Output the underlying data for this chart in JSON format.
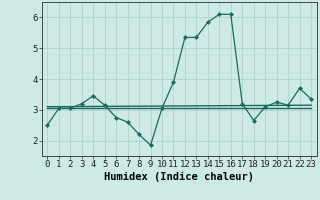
{
  "x": [
    0,
    1,
    2,
    3,
    4,
    5,
    6,
    7,
    8,
    9,
    10,
    11,
    12,
    13,
    14,
    15,
    16,
    17,
    18,
    19,
    20,
    21,
    22,
    23
  ],
  "y_main": [
    2.5,
    3.05,
    3.05,
    3.2,
    3.45,
    3.15,
    2.75,
    2.6,
    2.2,
    1.85,
    3.05,
    3.9,
    5.35,
    5.35,
    5.85,
    6.1,
    6.1,
    3.2,
    2.65,
    3.1,
    3.25,
    3.15,
    3.7,
    3.35
  ],
  "y_line1_x": [
    0,
    23
  ],
  "y_line1_y": [
    3.1,
    3.15
  ],
  "y_line2_x": [
    0,
    23
  ],
  "y_line2_y": [
    3.05,
    3.05
  ],
  "background_color": "#ceeae6",
  "grid_color": "#b0d4d0",
  "line_color": "#1a6b5a",
  "xlabel": "Humidex (Indice chaleur)",
  "ylim": [
    1.5,
    6.5
  ],
  "xlim": [
    -0.5,
    23.5
  ],
  "yticks": [
    2,
    3,
    4,
    5,
    6
  ],
  "xtick_labels": [
    "0",
    "1",
    "2",
    "3",
    "4",
    "5",
    "6",
    "7",
    "8",
    "9",
    "10",
    "11",
    "12",
    "13",
    "14",
    "15",
    "16",
    "17",
    "18",
    "19",
    "20",
    "21",
    "22",
    "23"
  ],
  "xlabel_fontsize": 7.5,
  "tick_fontsize": 6.5
}
